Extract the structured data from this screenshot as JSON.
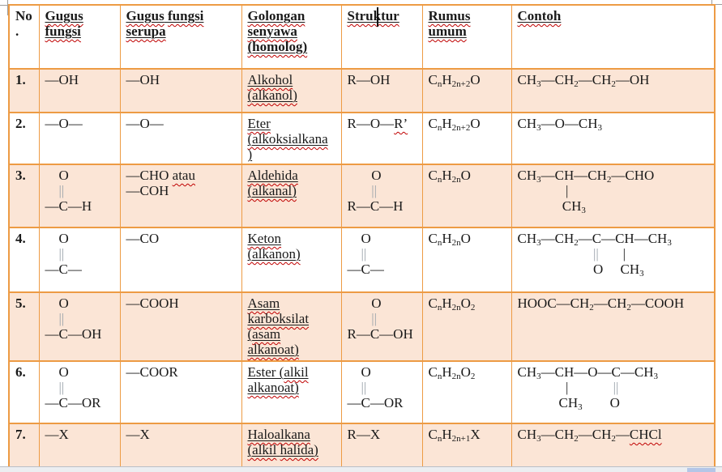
{
  "colors": {
    "table_border": "#ED9B44",
    "row_fill": "#FBE5D6",
    "spellcheck_red": "#C00000",
    "scrollbar_thumb": "#B4C6E7"
  },
  "document": {
    "table": {
      "header": [
        "No\n.",
        "{Gugus}\n{fungsi}",
        "{Gugus} {fungsi}\n{serupa}",
        "{Golongan}\n{senyawa}\n{(homolog)}",
        "{Struktur}",
        "{Rumus}\n{umum}",
        "{Contoh}"
      ],
      "rows": [
        {
          "no": "1.",
          "gugus": "—OH",
          "serupa": "—OH",
          "golongan": "{Alkohol}\n{(alkanol)}",
          "struktur": "R—OH",
          "rumus": "C~n~H~2n+2~O",
          "contoh": "CH~3~—CH~2~—CH~2~—OH"
        },
        {
          "no": "2.",
          "gugus": "—O—",
          "serupa": "—O—",
          "golongan": "{Eter}\n{(alkoksialkana}\n)",
          "struktur": "R—O—{R’}",
          "rumus": "C~n~H~2n+2~O",
          "contoh": "CH~3~—O—CH~3~"
        },
        {
          "no": "3.",
          "gugus": "    O\n    [||]\n—C—H",
          "serupa": "—CHO {atau}\n—COH",
          "golongan": "{Aldehida}\n{(alkanal)}",
          "struktur": "       O\n       [||]\nR—C—H",
          "rumus": "C~n~H~2n~O",
          "contoh": "CH~3~—CH—CH~2~—CHO\n              |\n             CH~3~"
        },
        {
          "no": "4.",
          "gugus": "    O\n    [||]\n—C—",
          "serupa": "—CO",
          "golongan": "{Keton}\n{(alkanon)}",
          "struktur": "    O\n    [||]\n—C—",
          "rumus": "C~n~H~2n~O",
          "contoh": "CH~3~—CH~2~—C—CH—CH~3~\n                      [||]       |\n                      O     CH~3~"
        },
        {
          "no": "5.",
          "gugus": "    O\n    [||]\n—C—OH",
          "serupa": "—COOH",
          "golongan": "{Asam}\n{karboksilat}\n({asam}\n{alkanoat)}",
          "struktur": "       O\n       [||]\nR—C—OH",
          "rumus": "C~n~H~2n~O~2~",
          "contoh": "HOOC—CH~2~—CH~2~—COOH"
        },
        {
          "no": "6.",
          "gugus": "    O\n    [||]\n—C—OR",
          "serupa": "—COOR",
          "golongan": "Ester ({alkil}\n{alkanoat)}",
          "struktur": "    O\n    [||]\n—C—OR",
          "rumus": "C~n~H~2n~O~2~",
          "contoh": "CH~3~—CH—O—C—CH~3~\n              |             [||]\n            CH~3~        O"
        },
        {
          "no": "7.",
          "gugus": "—X",
          "serupa": "—X",
          "golongan": "{Haloalkana}\n{(alkil} {halida)}",
          "struktur": "R—X",
          "rumus": "C~n~H~2n+1~X",
          "contoh": "CH~3~—CH~2~—CH~2~—{CHCl}"
        }
      ]
    }
  }
}
